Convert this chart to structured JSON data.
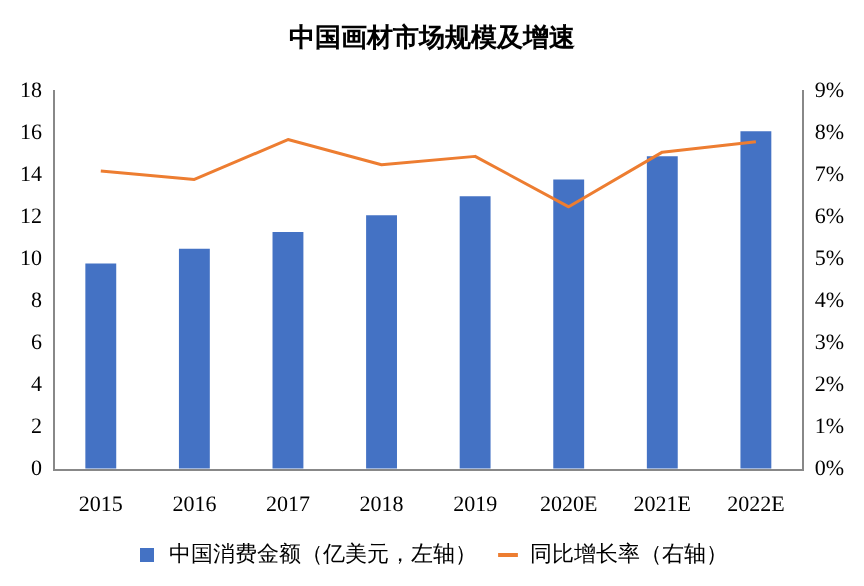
{
  "chart_data": {
    "type": "bar",
    "title": "中国画材市场规模及增速",
    "categories": [
      "2015",
      "2016",
      "2017",
      "2018",
      "2019",
      "2020E",
      "2021E",
      "2022E"
    ],
    "series": [
      {
        "name": "中国消费金额（亿美元，左轴）",
        "color": "#4472c4",
        "values": [
          9.8,
          10.5,
          11.3,
          12.1,
          13.0,
          13.8,
          14.9,
          16.1
        ]
      },
      {
        "name": "同比增长率（右轴）",
        "type": "line",
        "axis": "y2",
        "color": "#ed7d31",
        "marker": "none",
        "values": [
          7.1,
          6.9,
          7.85,
          7.25,
          7.45,
          6.25,
          7.55,
          7.8
        ]
      }
    ],
    "ylim": [
      0,
      18
    ],
    "yticks": [
      0,
      2,
      4,
      6,
      8,
      10,
      12,
      14,
      16,
      18
    ],
    "y2lim": [
      0,
      9
    ],
    "y2ticks": [
      {
        "value": 0,
        "label": "0%"
      },
      {
        "value": 1,
        "label": "1%"
      },
      {
        "value": 2,
        "label": "2%"
      },
      {
        "value": 3,
        "label": "3%"
      },
      {
        "value": 4,
        "label": "4%"
      },
      {
        "value": 5,
        "label": "5%"
      },
      {
        "value": 6,
        "label": "6%"
      },
      {
        "value": 7,
        "label": "7%"
      },
      {
        "value": 8,
        "label": "8%"
      },
      {
        "value": 9,
        "label": "9%"
      }
    ],
    "grid": false,
    "legend": "bottom"
  }
}
